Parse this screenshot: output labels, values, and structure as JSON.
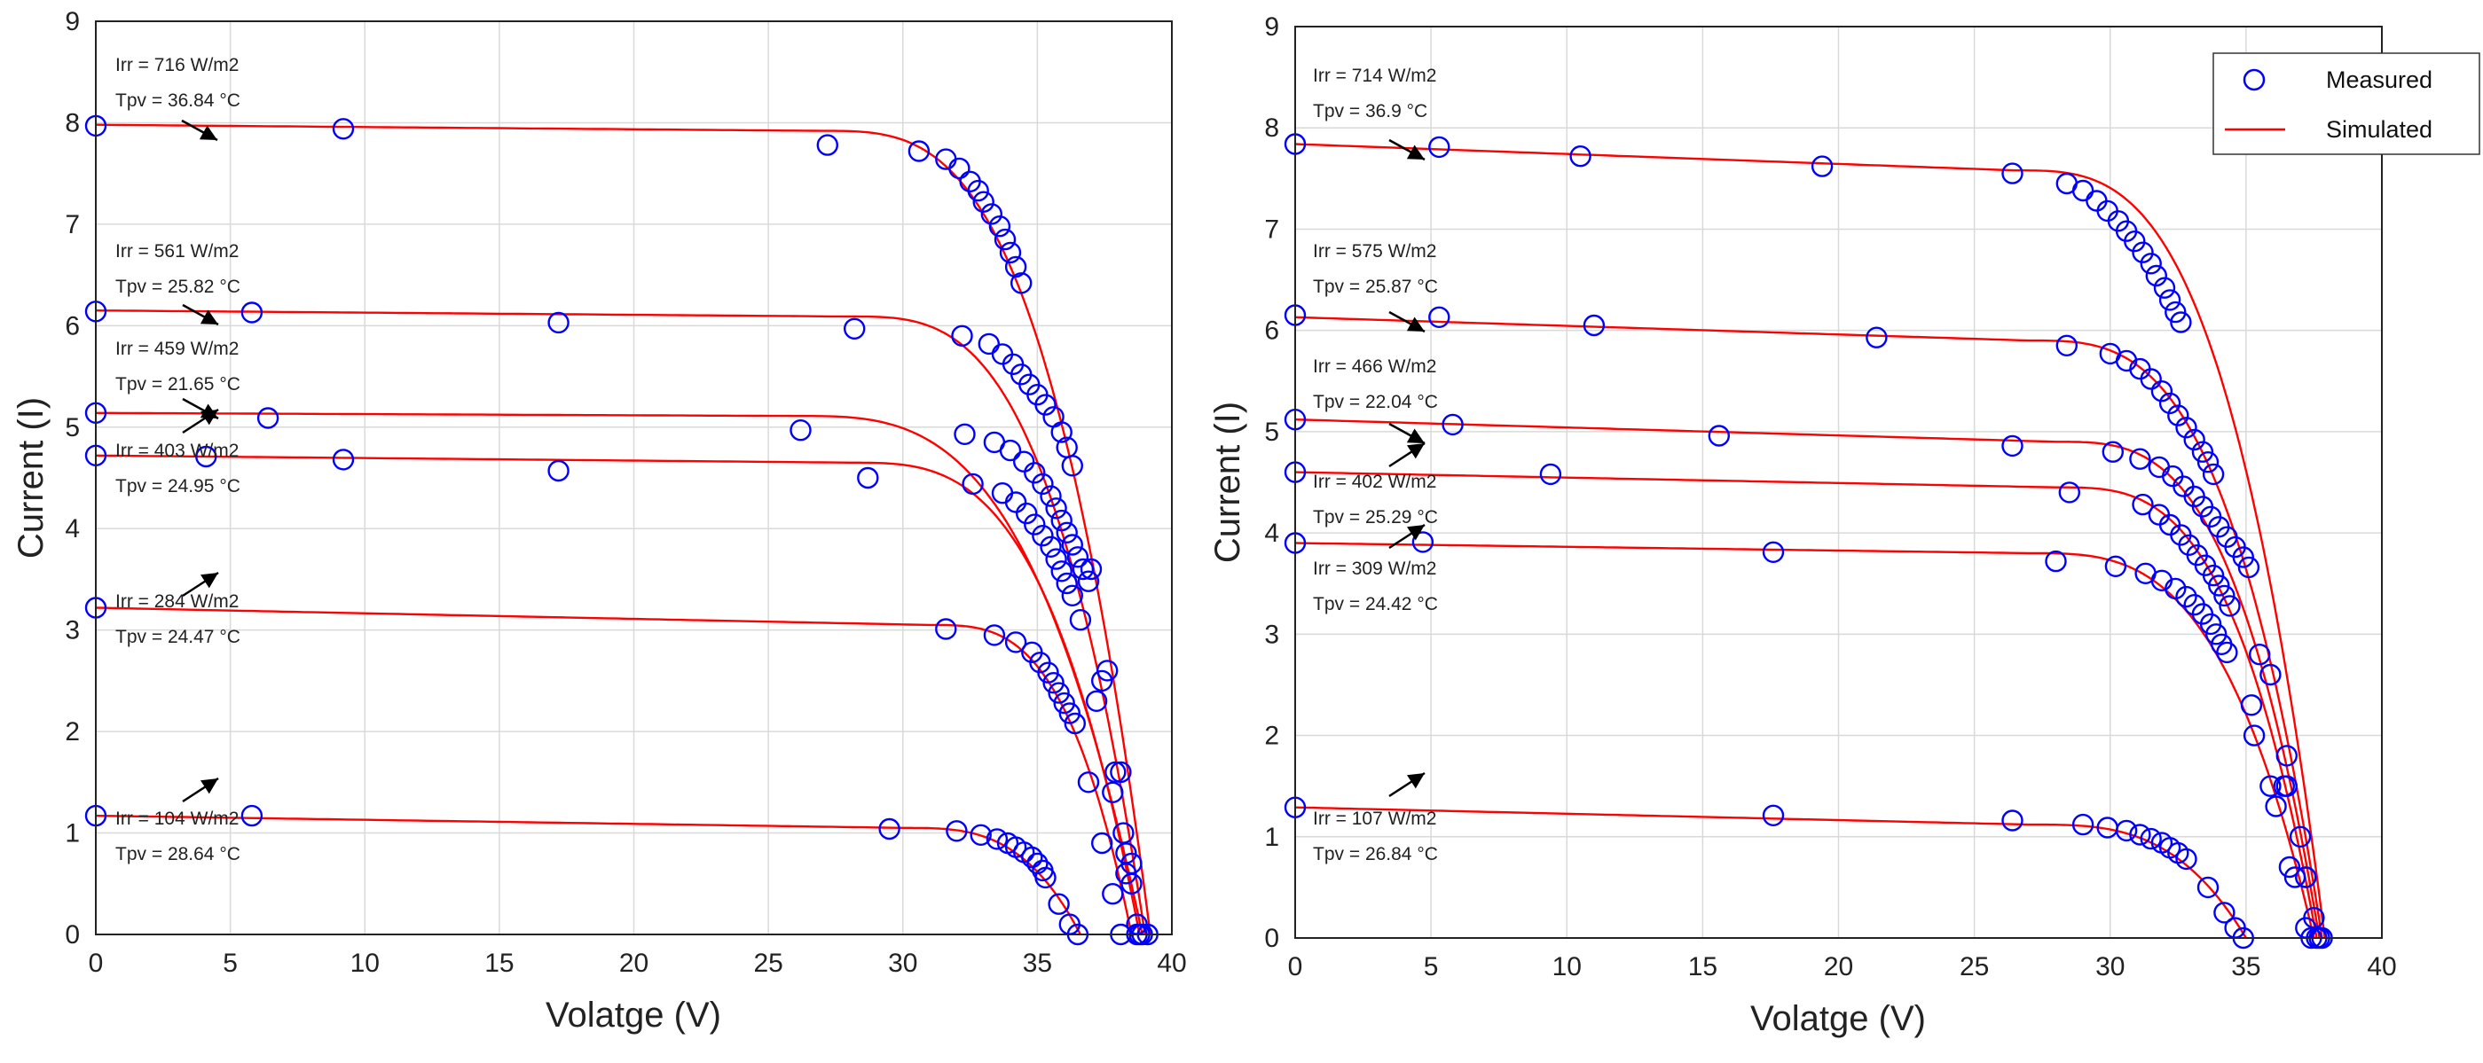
{
  "chart_data": [
    {
      "type": "scatter",
      "xlabel": "Volatge (V)",
      "ylabel": "Current (I)",
      "xlim": [
        0,
        40
      ],
      "ylim": [
        0,
        9
      ],
      "xticks": [
        "0",
        "5",
        "10",
        "15",
        "20",
        "25",
        "30",
        "35",
        "40"
      ],
      "yticks": [
        "0",
        "1",
        "2",
        "3",
        "4",
        "5",
        "6",
        "7",
        "8",
        "9"
      ],
      "grid": true,
      "curves": [
        {
          "isc": 7.98,
          "ipl": 7.92,
          "vk": 27.0,
          "voc": 39.2,
          "irr_label": "Irr = 716 W/m2",
          "tpv_label": "Tpv = 36.84 °C",
          "measured": [
            [
              0,
              7.97
            ],
            [
              9.2,
              7.94
            ],
            [
              27.2,
              7.78
            ],
            [
              30.6,
              7.72
            ],
            [
              31.6,
              7.64
            ],
            [
              32.1,
              7.55
            ],
            [
              32.5,
              7.42
            ],
            [
              32.8,
              7.33
            ],
            [
              33.0,
              7.22
            ],
            [
              33.3,
              7.1
            ],
            [
              33.6,
              6.98
            ],
            [
              33.8,
              6.85
            ],
            [
              34.0,
              6.72
            ],
            [
              34.2,
              6.58
            ],
            [
              34.4,
              6.42
            ],
            [
              38.2,
              1.0
            ],
            [
              38.5,
              0.5
            ],
            [
              38.8,
              0.0
            ],
            [
              39.1,
              0.0
            ]
          ]
        },
        {
          "isc": 6.15,
          "ipl": 6.09,
          "vk": 28.0,
          "voc": 39.0,
          "irr_label": "Irr = 561 W/m2",
          "tpv_label": "Tpv = 25.82 °C",
          "measured": [
            [
              0,
              6.14
            ],
            [
              5.8,
              6.13
            ],
            [
              17.2,
              6.03
            ],
            [
              28.2,
              5.97
            ],
            [
              32.2,
              5.9
            ],
            [
              33.2,
              5.82
            ],
            [
              33.7,
              5.72
            ],
            [
              34.1,
              5.62
            ],
            [
              34.4,
              5.52
            ],
            [
              34.7,
              5.42
            ],
            [
              35.0,
              5.32
            ],
            [
              35.3,
              5.22
            ],
            [
              35.6,
              5.1
            ],
            [
              35.9,
              4.95
            ],
            [
              36.1,
              4.8
            ],
            [
              36.3,
              4.62
            ],
            [
              37.0,
              3.6
            ],
            [
              37.6,
              2.6
            ],
            [
              38.1,
              1.6
            ],
            [
              38.5,
              0.7
            ],
            [
              38.9,
              0.0
            ]
          ]
        },
        {
          "isc": 5.14,
          "ipl": 5.11,
          "vk": 26.0,
          "voc": 38.9,
          "irr_label": "Irr = 459 W/m2",
          "tpv_label": "Tpv = 21.65 °C",
          "measured": [
            [
              0,
              5.14
            ],
            [
              6.4,
              5.09
            ],
            [
              26.2,
              4.97
            ],
            [
              32.3,
              4.93
            ],
            [
              33.4,
              4.85
            ],
            [
              34.0,
              4.77
            ],
            [
              34.5,
              4.66
            ],
            [
              34.9,
              4.55
            ],
            [
              35.2,
              4.44
            ],
            [
              35.5,
              4.32
            ],
            [
              35.7,
              4.2
            ],
            [
              35.9,
              4.08
            ],
            [
              36.1,
              3.96
            ],
            [
              36.3,
              3.84
            ],
            [
              36.5,
              3.72
            ],
            [
              36.7,
              3.6
            ],
            [
              36.9,
              3.48
            ],
            [
              37.4,
              2.5
            ],
            [
              37.9,
              1.6
            ],
            [
              38.3,
              0.8
            ],
            [
              38.7,
              0.1
            ]
          ]
        },
        {
          "isc": 4.72,
          "ipl": 4.65,
          "vk": 28.0,
          "voc": 38.8,
          "irr_label": "Irr = 403 W/m2",
          "tpv_label": "Tpv = 24.95 °C",
          "measured": [
            [
              0,
              4.72
            ],
            [
              4.1,
              4.71
            ],
            [
              9.2,
              4.68
            ],
            [
              17.2,
              4.57
            ],
            [
              28.7,
              4.5
            ],
            [
              32.6,
              4.44
            ],
            [
              33.7,
              4.35
            ],
            [
              34.2,
              4.26
            ],
            [
              34.6,
              4.15
            ],
            [
              34.9,
              4.04
            ],
            [
              35.2,
              3.93
            ],
            [
              35.5,
              3.82
            ],
            [
              35.7,
              3.7
            ],
            [
              35.9,
              3.58
            ],
            [
              36.1,
              3.46
            ],
            [
              36.3,
              3.34
            ],
            [
              36.6,
              3.1
            ],
            [
              37.2,
              2.3
            ],
            [
              37.8,
              1.4
            ],
            [
              38.3,
              0.6
            ],
            [
              38.7,
              0.0
            ]
          ]
        },
        {
          "isc": 3.22,
          "ipl": 3.05,
          "vk": 31.0,
          "voc": 38.5,
          "irr_label": "Irr = 284 W/m2",
          "tpv_label": "Tpv = 24.47 °C",
          "measured": [
            [
              0,
              3.22
            ],
            [
              31.6,
              3.01
            ],
            [
              33.4,
              2.95
            ],
            [
              34.2,
              2.88
            ],
            [
              34.8,
              2.78
            ],
            [
              35.1,
              2.68
            ],
            [
              35.4,
              2.58
            ],
            [
              35.6,
              2.48
            ],
            [
              35.8,
              2.38
            ],
            [
              36.0,
              2.28
            ],
            [
              36.2,
              2.18
            ],
            [
              36.4,
              2.08
            ],
            [
              36.9,
              1.5
            ],
            [
              37.4,
              0.9
            ],
            [
              37.8,
              0.4
            ],
            [
              38.1,
              0.0
            ]
          ]
        },
        {
          "isc": 1.17,
          "ipl": 1.05,
          "vk": 30.0,
          "voc": 36.6,
          "irr_label": "Irr = 104 W/m2",
          "tpv_label": "Tpv = 28.64 °C",
          "measured": [
            [
              0,
              1.17
            ],
            [
              5.8,
              1.17
            ],
            [
              29.5,
              1.04
            ],
            [
              32.0,
              1.02
            ],
            [
              32.9,
              0.98
            ],
            [
              33.5,
              0.94
            ],
            [
              33.9,
              0.9
            ],
            [
              34.2,
              0.86
            ],
            [
              34.5,
              0.81
            ],
            [
              34.8,
              0.76
            ],
            [
              35.0,
              0.7
            ],
            [
              35.2,
              0.63
            ],
            [
              35.3,
              0.56
            ],
            [
              35.8,
              0.3
            ],
            [
              36.2,
              0.1
            ],
            [
              36.5,
              0.0
            ]
          ]
        }
      ]
    },
    {
      "type": "scatter",
      "xlabel": "Volatge (V)",
      "ylabel": "Current (I)",
      "xlim": [
        0,
        40
      ],
      "ylim": [
        0,
        9
      ],
      "xticks": [
        "0",
        "5",
        "10",
        "15",
        "20",
        "25",
        "30",
        "35",
        "40"
      ],
      "yticks": [
        "0",
        "1",
        "2",
        "3",
        "4",
        "5",
        "6",
        "7",
        "8",
        "9"
      ],
      "grid": true,
      "legend": {
        "position": "top-right",
        "measured": "Measured",
        "simulated": "Simulated"
      },
      "curves": [
        {
          "isc": 7.84,
          "ipl": 7.58,
          "vk": 26.5,
          "voc": 37.9,
          "irr_label": "Irr = 714 W/m2",
          "tpv_label": "Tpv = 36.9 °C",
          "measured": [
            [
              0,
              7.84
            ],
            [
              5.3,
              7.81
            ],
            [
              10.5,
              7.72
            ],
            [
              19.4,
              7.62
            ],
            [
              26.4,
              7.55
            ],
            [
              28.4,
              7.45
            ],
            [
              29.0,
              7.38
            ],
            [
              29.5,
              7.28
            ],
            [
              29.9,
              7.18
            ],
            [
              30.3,
              7.08
            ],
            [
              30.6,
              6.98
            ],
            [
              30.9,
              6.88
            ],
            [
              31.2,
              6.77
            ],
            [
              31.5,
              6.66
            ],
            [
              31.7,
              6.54
            ],
            [
              32.0,
              6.42
            ],
            [
              32.2,
              6.3
            ],
            [
              32.4,
              6.18
            ],
            [
              32.6,
              6.08
            ],
            [
              36.4,
              1.5
            ],
            [
              37.2,
              0.6
            ],
            [
              37.7,
              0.0
            ]
          ]
        },
        {
          "isc": 6.13,
          "ipl": 5.9,
          "vk": 27.0,
          "voc": 37.8,
          "irr_label": "Irr = 575 W/m2",
          "tpv_label": "Tpv = 25.87 °C",
          "measured": [
            [
              0,
              6.15
            ],
            [
              5.3,
              6.13
            ],
            [
              11.0,
              6.05
            ],
            [
              21.4,
              5.93
            ],
            [
              28.4,
              5.85
            ],
            [
              30.0,
              5.77
            ],
            [
              30.6,
              5.7
            ],
            [
              31.1,
              5.62
            ],
            [
              31.5,
              5.52
            ],
            [
              31.9,
              5.4
            ],
            [
              32.2,
              5.28
            ],
            [
              32.5,
              5.16
            ],
            [
              32.8,
              5.04
            ],
            [
              33.1,
              4.92
            ],
            [
              33.4,
              4.8
            ],
            [
              33.6,
              4.7
            ],
            [
              33.8,
              4.58
            ],
            [
              35.5,
              2.8
            ],
            [
              36.5,
              1.5
            ],
            [
              37.2,
              0.6
            ],
            [
              37.6,
              0.0
            ]
          ]
        },
        {
          "isc": 5.12,
          "ipl": 4.9,
          "vk": 28.0,
          "voc": 37.7,
          "irr_label": "Irr = 466 W/m2",
          "tpv_label": "Tpv = 22.04 °C",
          "measured": [
            [
              0,
              5.12
            ],
            [
              5.8,
              5.07
            ],
            [
              15.6,
              4.96
            ],
            [
              26.4,
              4.86
            ],
            [
              30.1,
              4.8
            ],
            [
              31.1,
              4.73
            ],
            [
              31.8,
              4.65
            ],
            [
              32.3,
              4.56
            ],
            [
              32.7,
              4.46
            ],
            [
              33.1,
              4.36
            ],
            [
              33.4,
              4.26
            ],
            [
              33.7,
              4.16
            ],
            [
              34.0,
              4.06
            ],
            [
              34.3,
              3.96
            ],
            [
              34.6,
              3.86
            ],
            [
              34.9,
              3.76
            ],
            [
              35.1,
              3.66
            ],
            [
              35.9,
              2.6
            ],
            [
              36.5,
              1.8
            ],
            [
              37.0,
              1.0
            ],
            [
              37.5,
              0.2
            ],
            [
              37.8,
              0.0
            ]
          ]
        },
        {
          "isc": 4.6,
          "ipl": 4.45,
          "vk": 28.0,
          "voc": 37.6,
          "irr_label": "Irr = 402 W/m2",
          "tpv_label": "Tpv = 25.29 °C",
          "measured": [
            [
              0,
              4.6
            ],
            [
              9.4,
              4.58
            ],
            [
              28.5,
              4.4
            ],
            [
              31.2,
              4.28
            ],
            [
              31.8,
              4.18
            ],
            [
              32.2,
              4.08
            ],
            [
              32.6,
              3.98
            ],
            [
              32.9,
              3.88
            ],
            [
              33.2,
              3.78
            ],
            [
              33.5,
              3.68
            ],
            [
              33.8,
              3.58
            ],
            [
              34.0,
              3.48
            ],
            [
              34.2,
              3.38
            ],
            [
              34.4,
              3.28
            ],
            [
              35.2,
              2.3
            ],
            [
              35.9,
              1.5
            ],
            [
              36.6,
              0.7
            ],
            [
              37.2,
              0.1
            ]
          ]
        },
        {
          "isc": 3.9,
          "ipl": 3.8,
          "vk": 27.0,
          "voc": 37.5,
          "irr_label": "Irr = 309 W/m2",
          "tpv_label": "Tpv = 24.42 °C",
          "measured": [
            [
              0,
              3.9
            ],
            [
              4.7,
              3.91
            ],
            [
              17.6,
              3.81
            ],
            [
              28.0,
              3.72
            ],
            [
              30.2,
              3.67
            ],
            [
              31.3,
              3.6
            ],
            [
              31.9,
              3.53
            ],
            [
              32.4,
              3.45
            ],
            [
              32.8,
              3.37
            ],
            [
              33.1,
              3.29
            ],
            [
              33.4,
              3.2
            ],
            [
              33.7,
              3.1
            ],
            [
              33.9,
              3.0
            ],
            [
              34.1,
              2.9
            ],
            [
              34.3,
              2.82
            ],
            [
              35.3,
              2.0
            ],
            [
              36.1,
              1.3
            ],
            [
              36.8,
              0.6
            ],
            [
              37.4,
              0.0
            ]
          ]
        },
        {
          "isc": 1.29,
          "ipl": 1.12,
          "vk": 27.0,
          "voc": 35.0,
          "irr_label": "Irr = 107 W/m2",
          "tpv_label": "Tpv = 26.84 °C",
          "measured": [
            [
              0,
              1.29
            ],
            [
              17.6,
              1.21
            ],
            [
              26.4,
              1.16
            ],
            [
              29.0,
              1.12
            ],
            [
              29.9,
              1.09
            ],
            [
              30.6,
              1.06
            ],
            [
              31.1,
              1.02
            ],
            [
              31.5,
              0.98
            ],
            [
              31.9,
              0.94
            ],
            [
              32.2,
              0.89
            ],
            [
              32.5,
              0.84
            ],
            [
              32.8,
              0.78
            ],
            [
              33.6,
              0.5
            ],
            [
              34.2,
              0.25
            ],
            [
              34.6,
              0.1
            ],
            [
              34.9,
              0.0
            ]
          ]
        }
      ]
    }
  ]
}
